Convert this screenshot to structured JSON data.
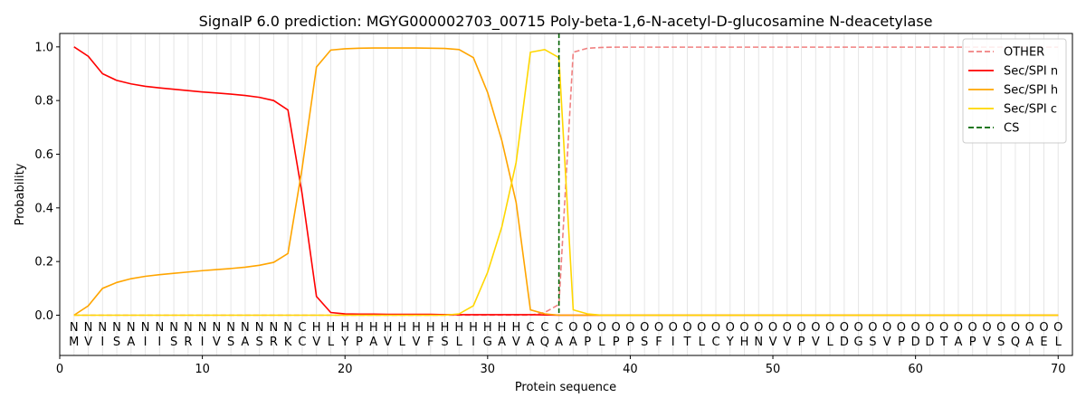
{
  "chart_data": {
    "type": "line",
    "title": "SignalP 6.0 prediction: MGYG000002703_00715 Poly-beta-1,6-N-acetyl-D-glucosamine N-deacetylase",
    "xlabel": "Protein sequence",
    "ylabel": "Probability",
    "xlim": [
      0,
      71
    ],
    "ylim": [
      -0.15,
      1.05
    ],
    "xticks": [
      0,
      10,
      20,
      30,
      40,
      50,
      60,
      70
    ],
    "yticks": [
      0.0,
      0.2,
      0.4,
      0.6,
      0.8,
      1.0
    ],
    "xtick_labels": [
      "0",
      "10",
      "20",
      "30",
      "40",
      "50",
      "60",
      "70"
    ],
    "ytick_labels": [
      "0.0",
      "0.2",
      "0.4",
      "0.6",
      "0.8",
      "1.0"
    ],
    "grid": "vertical lines at each residue",
    "legend_position": "top-right",
    "sequence": [
      "M",
      "V",
      "I",
      "S",
      "A",
      "I",
      "I",
      "S",
      "R",
      "I",
      "V",
      "S",
      "A",
      "S",
      "R",
      "K",
      "C",
      "V",
      "L",
      "Y",
      "P",
      "A",
      "V",
      "L",
      "V",
      "F",
      "S",
      "L",
      "I",
      "G",
      "A",
      "V",
      "A",
      "Q",
      "A",
      "A",
      "P",
      "L",
      "P",
      "P",
      "S",
      "F",
      "I",
      "T",
      "L",
      "C",
      "Y",
      "H",
      "N",
      "V",
      "V",
      "P",
      "V",
      "L",
      "D",
      "G",
      "S",
      "V",
      "P",
      "D",
      "D",
      "T",
      "A",
      "P",
      "V",
      "S",
      "Q",
      "A",
      "E",
      "L"
    ],
    "region_labels": [
      "N",
      "N",
      "N",
      "N",
      "N",
      "N",
      "N",
      "N",
      "N",
      "N",
      "N",
      "N",
      "N",
      "N",
      "N",
      "N",
      "C",
      "H",
      "H",
      "H",
      "H",
      "H",
      "H",
      "H",
      "H",
      "H",
      "H",
      "H",
      "H",
      "H",
      "H",
      "H",
      "C",
      "C",
      "C",
      "O",
      "O",
      "O",
      "O",
      "O",
      "O",
      "O",
      "O",
      "O",
      "O",
      "O",
      "O",
      "O",
      "O",
      "O",
      "O",
      "O",
      "O",
      "O",
      "O",
      "O",
      "O",
      "O",
      "O",
      "O",
      "O",
      "O",
      "O",
      "O",
      "O",
      "O",
      "O",
      "O",
      "O",
      "O"
    ],
    "region_label_colors": {
      "N": "#ff0000",
      "H": "#ffa500",
      "C": "#ffd700",
      "O": "#808080"
    },
    "cs_position": 35,
    "series": [
      {
        "name": "OTHER",
        "color": "#f08080",
        "dash": "dashed",
        "values": [
          0.0,
          0.0,
          0.0,
          0.0,
          0.0,
          0.0,
          0.0,
          0.0,
          0.0,
          0.0,
          0.0,
          0.0,
          0.0,
          0.0,
          0.0,
          0.0,
          0.0,
          0.0,
          0.0,
          0.0,
          0.0,
          0.0,
          0.0,
          0.0,
          0.0,
          0.0,
          0.0,
          0.0,
          0.0,
          0.0,
          0.0,
          0.0,
          0.0,
          0.01,
          0.04,
          0.98,
          0.995,
          0.998,
          0.999,
          0.999,
          0.999,
          0.999,
          0.999,
          0.999,
          0.999,
          0.999,
          0.999,
          0.999,
          0.999,
          0.999,
          0.999,
          0.999,
          0.999,
          0.999,
          0.999,
          0.999,
          0.999,
          0.999,
          0.999,
          0.999,
          0.999,
          0.999,
          0.999,
          0.999,
          0.999,
          0.999,
          0.999,
          0.999,
          0.999,
          0.999
        ]
      },
      {
        "name": "Sec/SPI n",
        "color": "#ff0000",
        "dash": "solid",
        "values": [
          1.0,
          0.965,
          0.9,
          0.875,
          0.862,
          0.853,
          0.847,
          0.842,
          0.837,
          0.832,
          0.828,
          0.824,
          0.819,
          0.812,
          0.8,
          0.765,
          0.45,
          0.07,
          0.01,
          0.005,
          0.004,
          0.004,
          0.003,
          0.003,
          0.003,
          0.003,
          0.002,
          0.002,
          0.002,
          0.002,
          0.002,
          0.002,
          0.002,
          0.001,
          0.0,
          0.0,
          0.0,
          0.0,
          0.0,
          0.0,
          0.0,
          0.0,
          0.0,
          0.0,
          0.0,
          0.0,
          0.0,
          0.0,
          0.0,
          0.0,
          0.0,
          0.0,
          0.0,
          0.0,
          0.0,
          0.0,
          0.0,
          0.0,
          0.0,
          0.0,
          0.0,
          0.0,
          0.0,
          0.0,
          0.0,
          0.0,
          0.0,
          0.0,
          0.0,
          0.0
        ]
      },
      {
        "name": "Sec/SPI h",
        "color": "#ffa500",
        "dash": "solid",
        "values": [
          0.0,
          0.035,
          0.1,
          0.122,
          0.136,
          0.145,
          0.151,
          0.156,
          0.161,
          0.166,
          0.17,
          0.174,
          0.179,
          0.186,
          0.197,
          0.23,
          0.55,
          0.925,
          0.988,
          0.993,
          0.995,
          0.996,
          0.996,
          0.996,
          0.996,
          0.995,
          0.994,
          0.99,
          0.96,
          0.83,
          0.65,
          0.42,
          0.02,
          0.005,
          0.0,
          0.0,
          0.0,
          0.0,
          0.0,
          0.0,
          0.0,
          0.0,
          0.0,
          0.0,
          0.0,
          0.0,
          0.0,
          0.0,
          0.0,
          0.0,
          0.0,
          0.0,
          0.0,
          0.0,
          0.0,
          0.0,
          0.0,
          0.0,
          0.0,
          0.0,
          0.0,
          0.0,
          0.0,
          0.0,
          0.0,
          0.0,
          0.0,
          0.0,
          0.0,
          0.0
        ]
      },
      {
        "name": "Sec/SPI c",
        "color": "#ffd700",
        "dash": "solid",
        "values": [
          0.0,
          0.0,
          0.0,
          0.0,
          0.0,
          0.0,
          0.0,
          0.0,
          0.0,
          0.0,
          0.0,
          0.0,
          0.0,
          0.0,
          0.0,
          0.0,
          0.0,
          0.0,
          0.0,
          0.0,
          0.0,
          0.0,
          0.0,
          0.0,
          0.0,
          0.0,
          0.0,
          0.005,
          0.035,
          0.16,
          0.33,
          0.57,
          0.98,
          0.99,
          0.96,
          0.02,
          0.005,
          0.0,
          0.0,
          0.0,
          0.0,
          0.0,
          0.0,
          0.0,
          0.0,
          0.0,
          0.0,
          0.0,
          0.0,
          0.0,
          0.0,
          0.0,
          0.0,
          0.0,
          0.0,
          0.0,
          0.0,
          0.0,
          0.0,
          0.0,
          0.0,
          0.0,
          0.0,
          0.0,
          0.0,
          0.0,
          0.0,
          0.0,
          0.0,
          0.0
        ]
      }
    ],
    "cs_series": {
      "name": "CS",
      "color": "#006400",
      "dash": "dashed"
    }
  }
}
